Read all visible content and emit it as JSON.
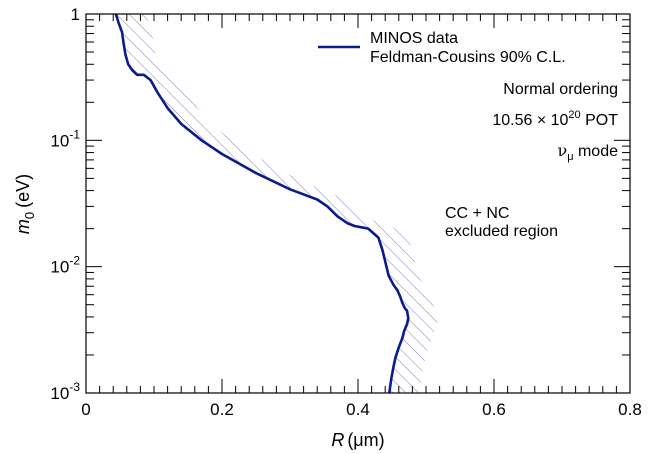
{
  "chart_data": {
    "type": "line",
    "title": "",
    "xlabel": {
      "main": "R",
      "unit": "(μm)"
    },
    "ylabel": {
      "main": "m",
      "sub": "0",
      "unit": "(eV)"
    },
    "xlim": [
      0,
      0.8
    ],
    "ylim": [
      0.001,
      1
    ],
    "yscale": "log",
    "x_ticks": [
      0,
      0.2,
      0.4,
      0.6,
      0.8
    ],
    "x_tick_labels": [
      "0",
      "0.2",
      "0.4",
      "0.6",
      "0.8"
    ],
    "y_ticks": [
      {
        "value": 1,
        "base": "1",
        "exp": ""
      },
      {
        "value": 0.1,
        "base": "10",
        "exp": "-1"
      },
      {
        "value": 0.01,
        "base": "10",
        "exp": "-2"
      },
      {
        "value": 0.001,
        "base": "10",
        "exp": "-3"
      }
    ],
    "legend": {
      "position": "top-right",
      "line1": "MINOS data",
      "line2": "Feldman-Cousins 90% C.L."
    },
    "annotations": {
      "ordering": "Normal ordering",
      "pot_mantissa": "10.56 × 10",
      "pot_exp": "20",
      "pot_unit": " POT",
      "mode_nu": "ν",
      "mode_sub": "μ",
      "mode_text": " mode",
      "region_line1": "CC + NC",
      "region_line2": "excluded region"
    },
    "series": [
      {
        "color": "#0b1a8c",
        "hatch_color": "#5a5fc0",
        "x": [
          0.044,
          0.048,
          0.053,
          0.055,
          0.058,
          0.062,
          0.068,
          0.075,
          0.085,
          0.095,
          0.105,
          0.12,
          0.14,
          0.17,
          0.2,
          0.25,
          0.3,
          0.34,
          0.355,
          0.37,
          0.385,
          0.395,
          0.405,
          0.415,
          0.43,
          0.436,
          0.44,
          0.445,
          0.452,
          0.458,
          0.462,
          0.465,
          0.468,
          0.47,
          0.472,
          0.473,
          0.474,
          0.472,
          0.468,
          0.465,
          0.46,
          0.455,
          0.452,
          0.449,
          0.447,
          0.446
        ],
        "y": [
          1.0,
          0.85,
          0.72,
          0.6,
          0.48,
          0.4,
          0.36,
          0.33,
          0.33,
          0.3,
          0.24,
          0.18,
          0.135,
          0.1,
          0.078,
          0.055,
          0.041,
          0.034,
          0.03,
          0.025,
          0.022,
          0.021,
          0.0205,
          0.02,
          0.017,
          0.0135,
          0.011,
          0.0085,
          0.0072,
          0.0065,
          0.0058,
          0.0052,
          0.0048,
          0.0046,
          0.0045,
          0.0042,
          0.0039,
          0.0035,
          0.0031,
          0.0027,
          0.0023,
          0.0019,
          0.0016,
          0.0013,
          0.0011,
          0.001
        ]
      }
    ]
  }
}
